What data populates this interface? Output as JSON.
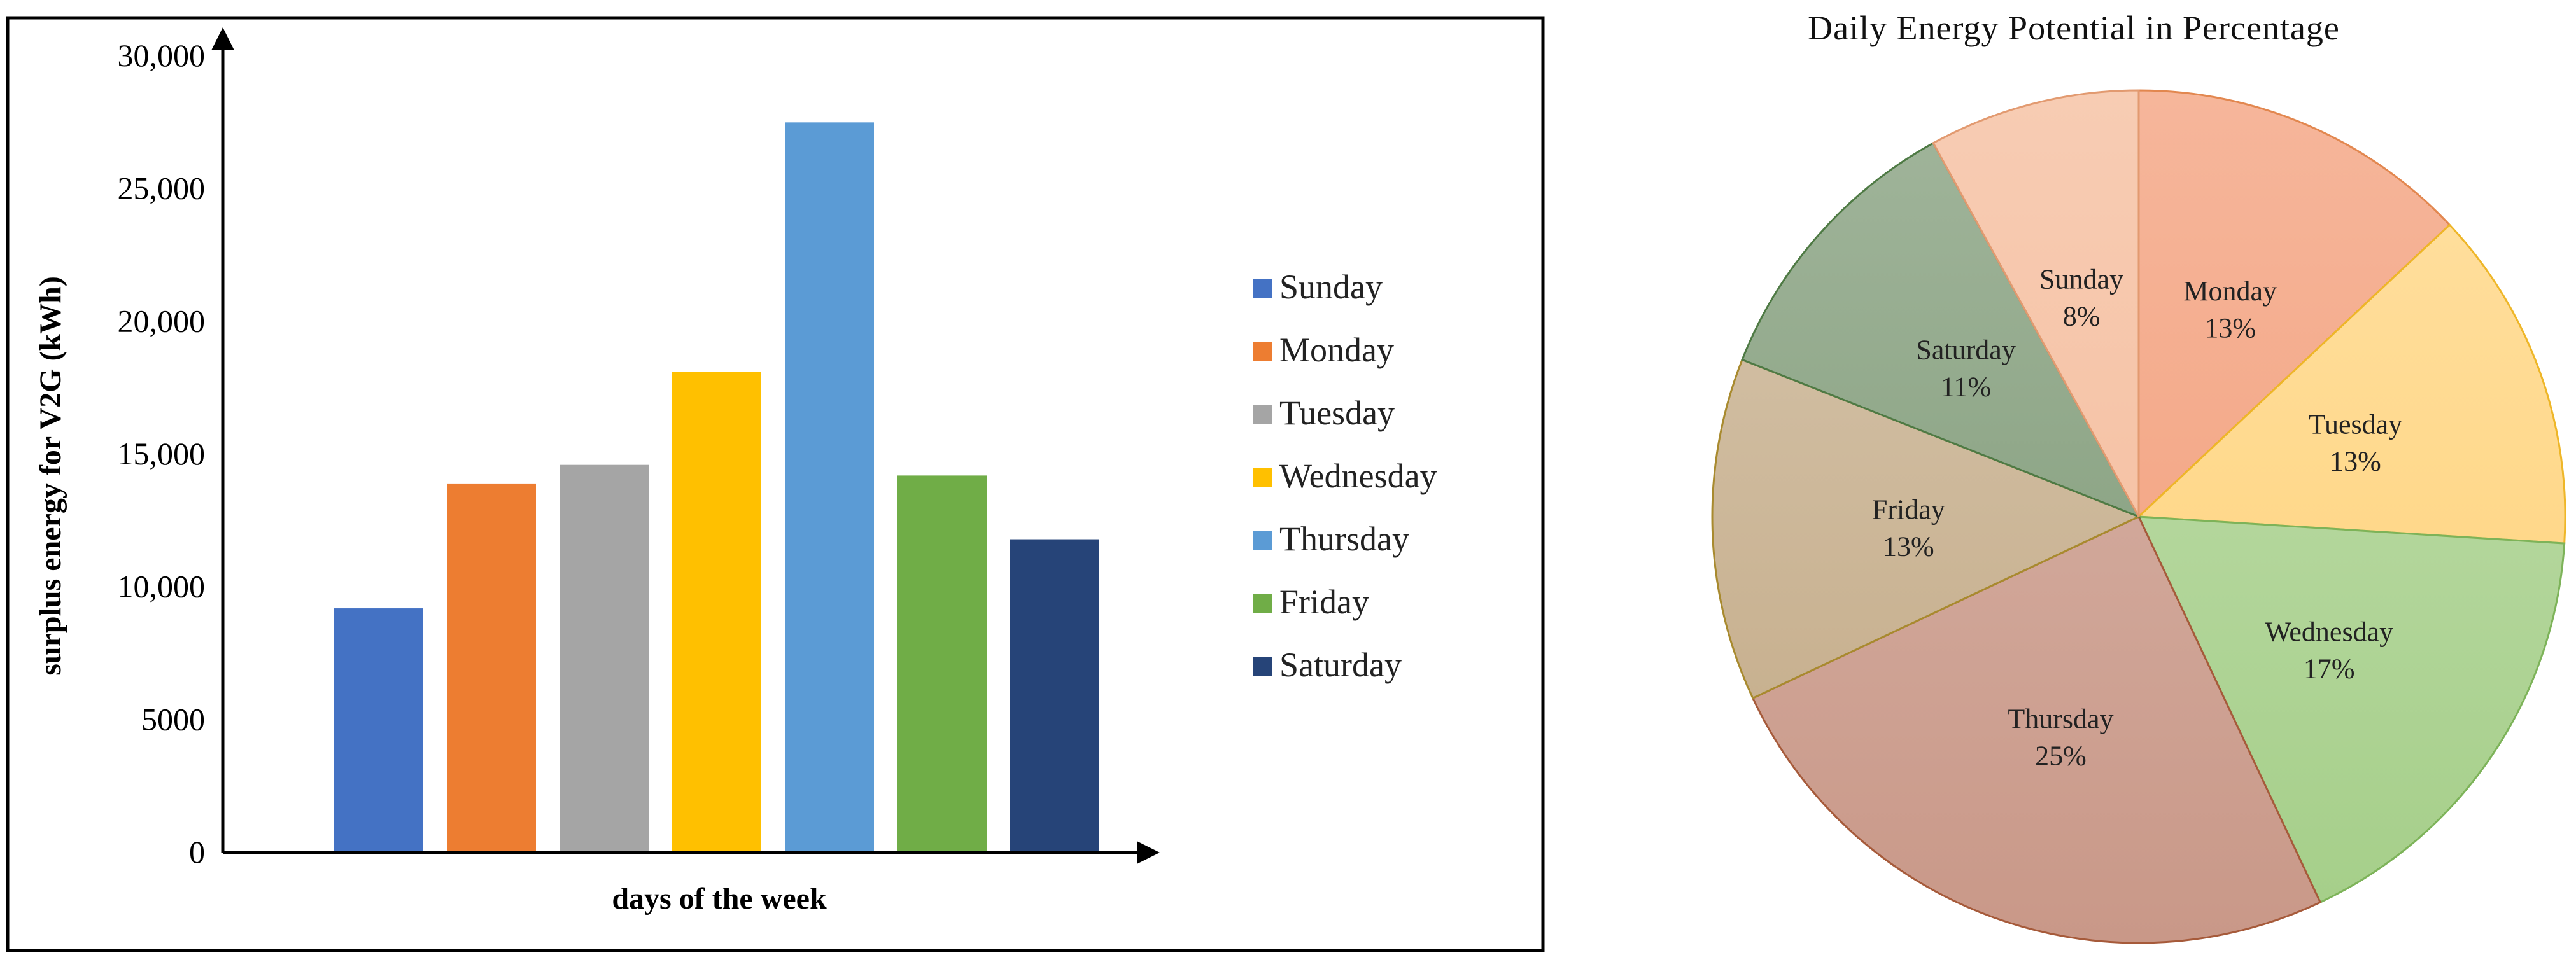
{
  "chart_data": [
    {
      "type": "bar",
      "title": "",
      "xlabel": "days of the week",
      "ylabel": "surplus energy for V2G (kWh)",
      "ylim": [
        0,
        30000
      ],
      "yticks": [
        0,
        5000,
        10000,
        15000,
        20000,
        25000,
        30000
      ],
      "ytick_labels": [
        "0",
        "5000",
        "10,000",
        "15,000",
        "20,000",
        "25,000",
        "30,000"
      ],
      "categories": [
        "Sunday",
        "Monday",
        "Tuesday",
        "Wednesday",
        "Thursday",
        "Friday",
        "Saturday"
      ],
      "values": [
        9200,
        13900,
        14600,
        18100,
        27500,
        14200,
        11800
      ],
      "colors": [
        "#4472C4",
        "#ED7D31",
        "#A5A5A5",
        "#FFC000",
        "#5B9BD5",
        "#70AD47",
        "#264478"
      ],
      "legend": {
        "placement": "right",
        "entries": [
          "Sunday",
          "Monday",
          "Tuesday",
          "Wednesday",
          "Thursday",
          "Friday",
          "Saturday"
        ]
      },
      "grid": false
    },
    {
      "type": "pie",
      "title": "Daily Energy Potential in Percentage",
      "slices": [
        {
          "label": "Monday",
          "value": 13,
          "value_label": "13%",
          "color": "#F4A989",
          "edge": "#E2874F"
        },
        {
          "label": "Tuesday",
          "value": 13,
          "value_label": "13%",
          "color": "#FFD88A",
          "edge": "#EEB628"
        },
        {
          "label": "Wednesday",
          "value": 17,
          "value_label": "17%",
          "color": "#A6CF8A",
          "edge": "#7DB359"
        },
        {
          "label": "Thursday",
          "value": 25,
          "value_label": "25%",
          "color": "#C99888",
          "edge": "#A65A3A"
        },
        {
          "label": "Friday",
          "value": 13,
          "value_label": "13%",
          "color": "#C8B190",
          "edge": "#A88A2E"
        },
        {
          "label": "Saturday",
          "value": 11,
          "value_label": "11%",
          "color": "#8EA687",
          "edge": "#4E7A44"
        },
        {
          "label": "Sunday",
          "value": 8,
          "value_label": "8%",
          "color": "#F6C3A6",
          "edge": "#E29A70"
        }
      ],
      "start": "12 o'clock",
      "direction": "clockwise"
    }
  ]
}
